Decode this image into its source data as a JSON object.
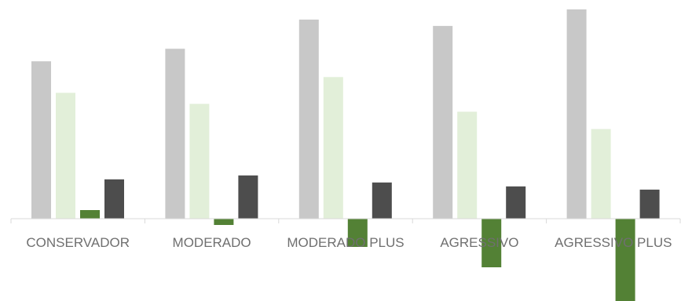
{
  "chart_data": {
    "type": "bar",
    "categories": [
      "CONSERVADOR",
      "MODERADO",
      "MODERADO PLUS",
      "AGRESSIVO",
      "AGRESSIVO PLUS"
    ],
    "series": [
      {
        "values": [
          200,
          216,
          253,
          245,
          266
        ],
        "color": "#c8c8c8"
      },
      {
        "values": [
          160,
          146,
          180,
          136,
          114
        ],
        "color": "#e2efd9"
      },
      {
        "values": [
          11,
          -8,
          -36,
          -62,
          -105
        ],
        "color": "#538135"
      },
      {
        "values": [
          50,
          55,
          46,
          41,
          37
        ],
        "color": "#4d4d4d"
      }
    ],
    "title": "",
    "xlabel": "",
    "ylabel": "",
    "ylim": [
      -105,
      266
    ],
    "grid": false,
    "legend": "none",
    "axis_color": "#d9d9d9",
    "label_color": "#6f6f6f"
  }
}
